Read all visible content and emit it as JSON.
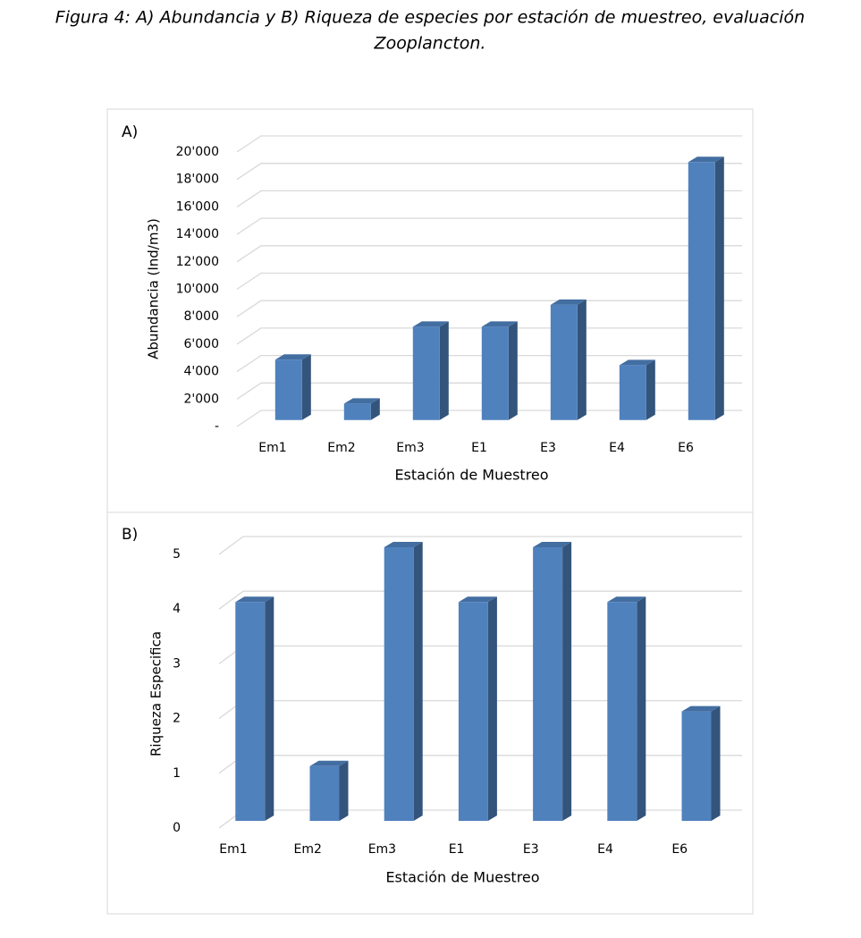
{
  "caption": [
    "Figura 4: A) Abundancia y B) Riqueza de especies por estación de muestreo, evaluación",
    "Zooplancton."
  ],
  "chart_data": [
    {
      "type": "bar3d",
      "title": "A)",
      "ylabel": "Abundancia (Ind/m3)",
      "xlabel": "Estación de Muestreo",
      "categories": [
        "Em1",
        "Em2",
        "Em3",
        "E1",
        "E3",
        "E4",
        "E6"
      ],
      "values": [
        4400,
        1200,
        6800,
        6800,
        8400,
        4000,
        18800
      ],
      "color": "#4f81bd",
      "ylim": [
        0,
        20000
      ],
      "yticks": [
        {
          "value": 0,
          "label": "-"
        },
        {
          "value": 2000,
          "label": "2'000"
        },
        {
          "value": 4000,
          "label": "4'000"
        },
        {
          "value": 6000,
          "label": "6'000"
        },
        {
          "value": 8000,
          "label": "8'000"
        },
        {
          "value": 10000,
          "label": "10'000"
        },
        {
          "value": 12000,
          "label": "12'000"
        },
        {
          "value": 14000,
          "label": "14'000"
        },
        {
          "value": 16000,
          "label": "16'000"
        },
        {
          "value": 18000,
          "label": "18'000"
        },
        {
          "value": 20000,
          "label": "20'000"
        }
      ],
      "grid": true
    },
    {
      "type": "bar3d",
      "title": "B)",
      "ylabel": "Riqueza Especifica",
      "xlabel": "Estación de Muestreo",
      "categories": [
        "Em1",
        "Em2",
        "Em3",
        "E1",
        "E3",
        "E4",
        "E6"
      ],
      "values": [
        4,
        1,
        5,
        4,
        5,
        4,
        2
      ],
      "color": "#4f81bd",
      "ylim": [
        0,
        5
      ],
      "yticks": [
        0,
        1,
        2,
        3,
        4,
        5
      ],
      "grid": true
    }
  ]
}
